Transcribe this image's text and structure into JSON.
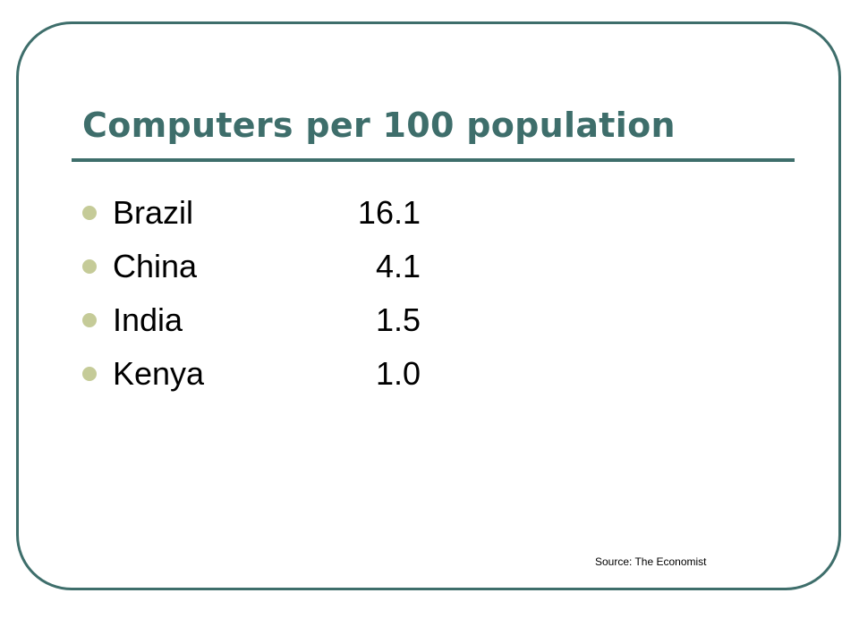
{
  "slide": {
    "title": "Computers per 100 population",
    "items": [
      {
        "country": "Brazil",
        "value": "16.1"
      },
      {
        "country": "China",
        "value": "4.1"
      },
      {
        "country": "India",
        "value": "1.5"
      },
      {
        "country": "Kenya",
        "value": "1.0"
      }
    ],
    "source": "Source: The Economist"
  },
  "colors": {
    "accent": "#3e6e6b",
    "bullet": "#c5cb98",
    "text": "#000000",
    "background": "#ffffff"
  }
}
